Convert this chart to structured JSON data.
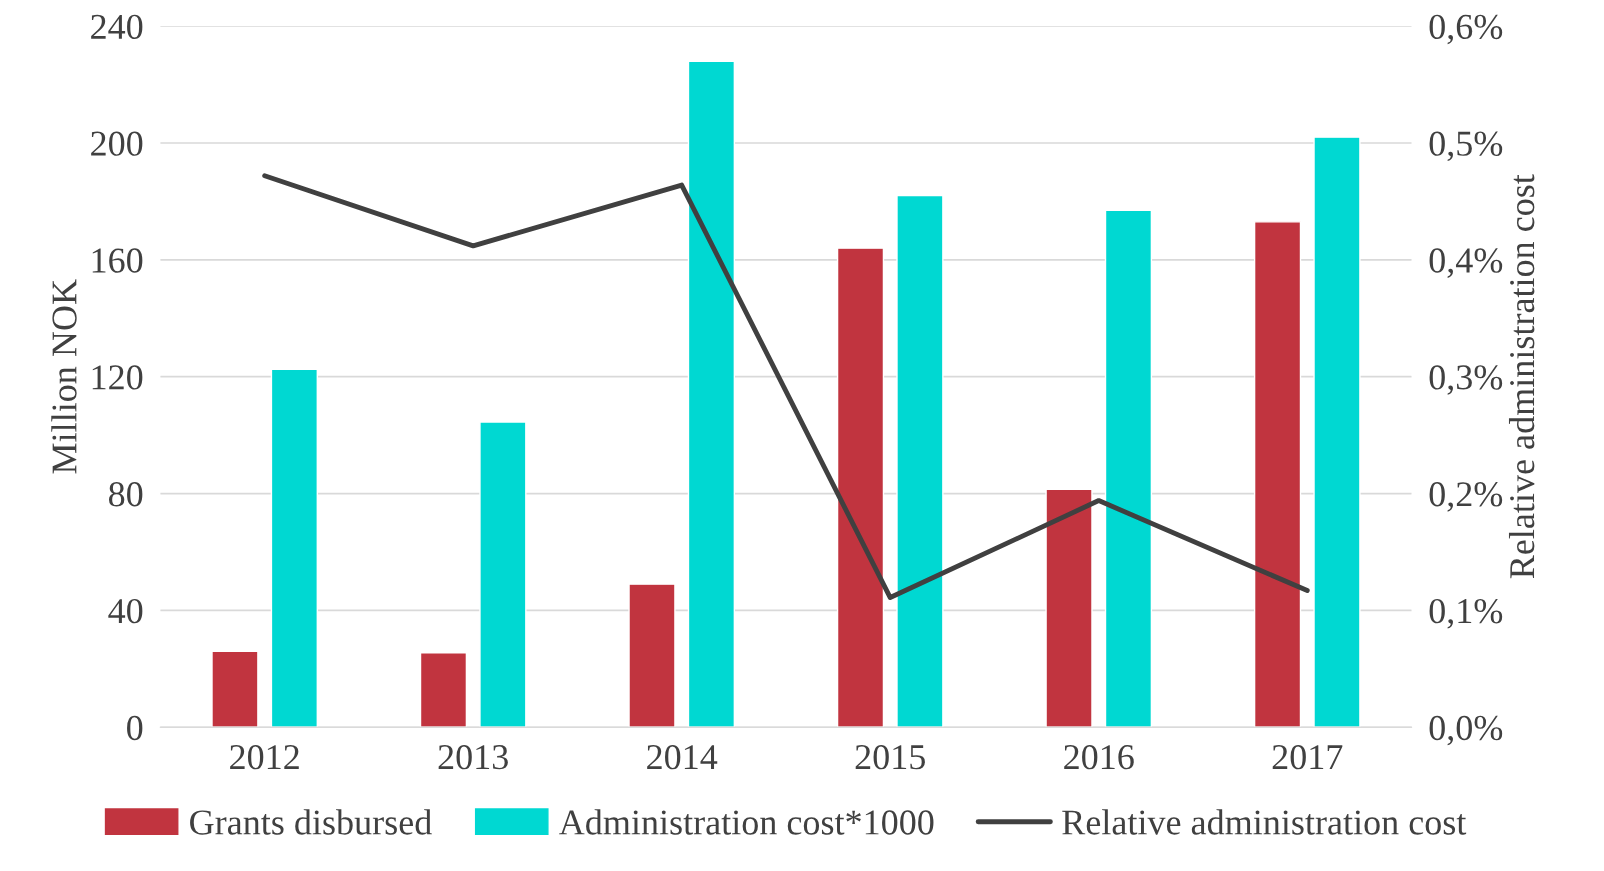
{
  "chart_data": {
    "type": "bar",
    "ylabel": "Million NOK",
    "y2label": "Relative administration cost",
    "categories": [
      "2012",
      "2013",
      "2014",
      "2015",
      "2016",
      "2017"
    ],
    "series": [
      {
        "name": "Grants disbursed",
        "color": "#c1343f",
        "values": [
          26,
          25.5,
          49,
          164,
          81.5,
          173
        ]
      },
      {
        "name": "Administration cost*1000",
        "color": "#00d8d2",
        "values": [
          122.5,
          104.5,
          228,
          182,
          177,
          202
        ]
      },
      {
        "name": "Relative administration cost",
        "type": "line",
        "axis": "y2",
        "color": "#404040",
        "values": [
          0.472,
          0.412,
          0.464,
          0.111,
          0.194,
          0.117
        ]
      }
    ],
    "ylim": [
      0,
      240
    ],
    "yticks": [
      0,
      40,
      80,
      120,
      160,
      200,
      240
    ],
    "y2lim": [
      0,
      0.6
    ],
    "y2ticks": [
      {
        "value": 0,
        "label": "0,0%"
      },
      {
        "value": 0.1,
        "label": "0,1%"
      },
      {
        "value": 0.2,
        "label": "0,2%"
      },
      {
        "value": 0.3,
        "label": "0,3%"
      },
      {
        "value": 0.4,
        "label": "0,4%"
      },
      {
        "value": 0.5,
        "label": "0,5%"
      },
      {
        "value": 0.6,
        "label": "0,6%"
      }
    ],
    "grid": "y",
    "legend": "bottom",
    "marker": "none",
    "line_style": "solid"
  }
}
